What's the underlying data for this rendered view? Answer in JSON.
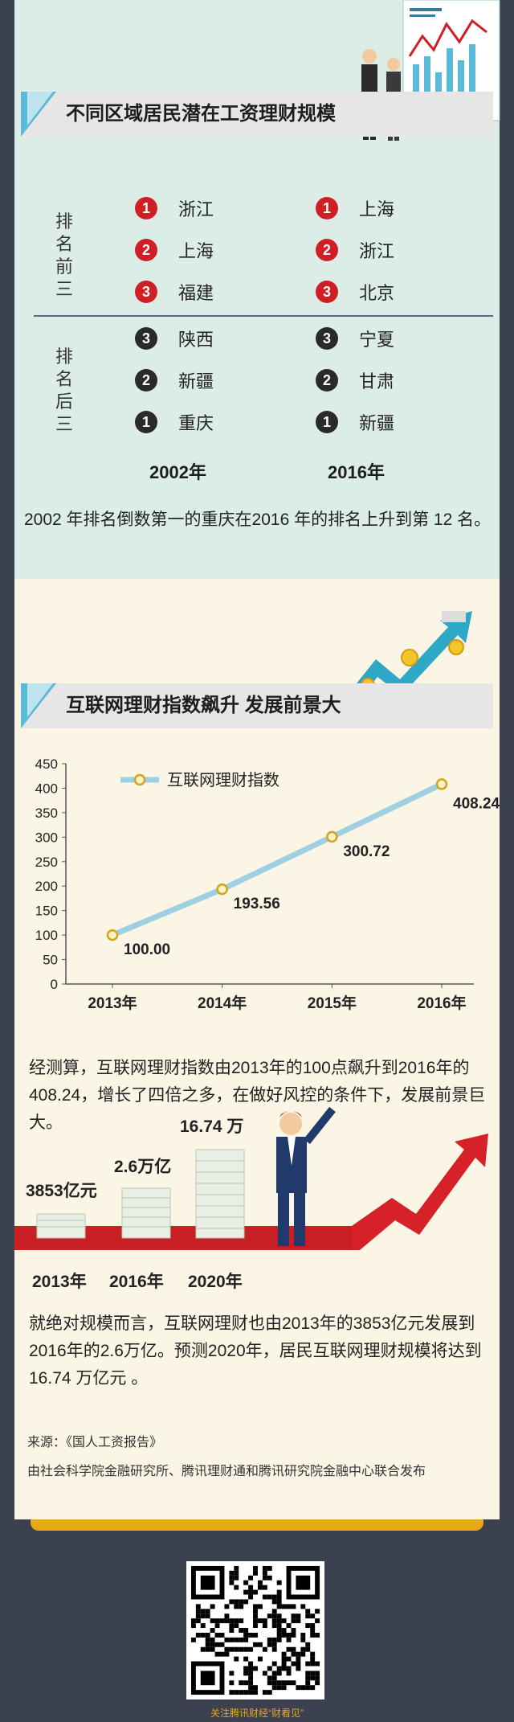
{
  "section1": {
    "title": "不同区域居民潜在工资理财规模",
    "top_label": "排名前三",
    "bottom_label": "排名后三",
    "col2002": {
      "top": [
        {
          "rank": "1",
          "name": "浙江"
        },
        {
          "rank": "2",
          "name": "上海"
        },
        {
          "rank": "3",
          "name": "福建"
        }
      ],
      "bottom": [
        {
          "rank": "3",
          "name": "陕西"
        },
        {
          "rank": "2",
          "name": "新疆"
        },
        {
          "rank": "1",
          "name": "重庆"
        }
      ],
      "year": "2002年"
    },
    "col2016": {
      "top": [
        {
          "rank": "1",
          "name": "上海"
        },
        {
          "rank": "2",
          "name": "浙江"
        },
        {
          "rank": "3",
          "name": "北京"
        }
      ],
      "bottom": [
        {
          "rank": "3",
          "name": "宁夏"
        },
        {
          "rank": "2",
          "name": "甘肃"
        },
        {
          "rank": "1",
          "name": "新疆"
        }
      ],
      "year": "2016年"
    },
    "note": "2002 年排名倒数第一的重庆在2016 年的排名上升到第 12 名。"
  },
  "section2": {
    "title": "互联网理财指数飙升 发展前景大",
    "paragraph1": "经测算，互联网理财指数由2013年的100点飙升到2016年的408.24，增长了四倍之多，在做好风控的条件下，发展前景巨大。",
    "growth": {
      "items": [
        {
          "value": "3853亿元",
          "year": "2013年"
        },
        {
          "value": "2.6万亿",
          "year": "2016年"
        },
        {
          "value": "16.74 万",
          "year": "2020年"
        }
      ]
    },
    "paragraph2": "就绝对规模而言，互联网理财也由2013年的3853亿元发展到2016年的2.6万亿。预测2020年，居民互联网理财规模将达到16.74 万亿元 。",
    "source1": "来源：《国人工资报告》",
    "source2": "由社会科学院金融研究所、腾讯理财通和腾讯研究院金融中心联合发布"
  },
  "footer": {
    "follow_text": "关注腾讯财经“财看见”"
  },
  "colors": {
    "accent_blue": "#5bbad8",
    "red": "#cf1f25",
    "gold": "#e8a816",
    "line": "#9fcfe2"
  },
  "chart_data": {
    "type": "line",
    "categories": [
      "2013年",
      "2014年",
      "2015年",
      "2016年"
    ],
    "series": [
      {
        "name": "互联网理财指数",
        "values": [
          100.0,
          193.56,
          300.72,
          408.24
        ]
      }
    ],
    "data_labels": [
      "100.00",
      "193.56",
      "300.72",
      "408.24"
    ],
    "yticks": [
      0,
      50,
      100,
      150,
      200,
      250,
      300,
      350,
      400,
      450
    ],
    "ylim": [
      0,
      450
    ],
    "legend": "top-left",
    "grid": false
  }
}
